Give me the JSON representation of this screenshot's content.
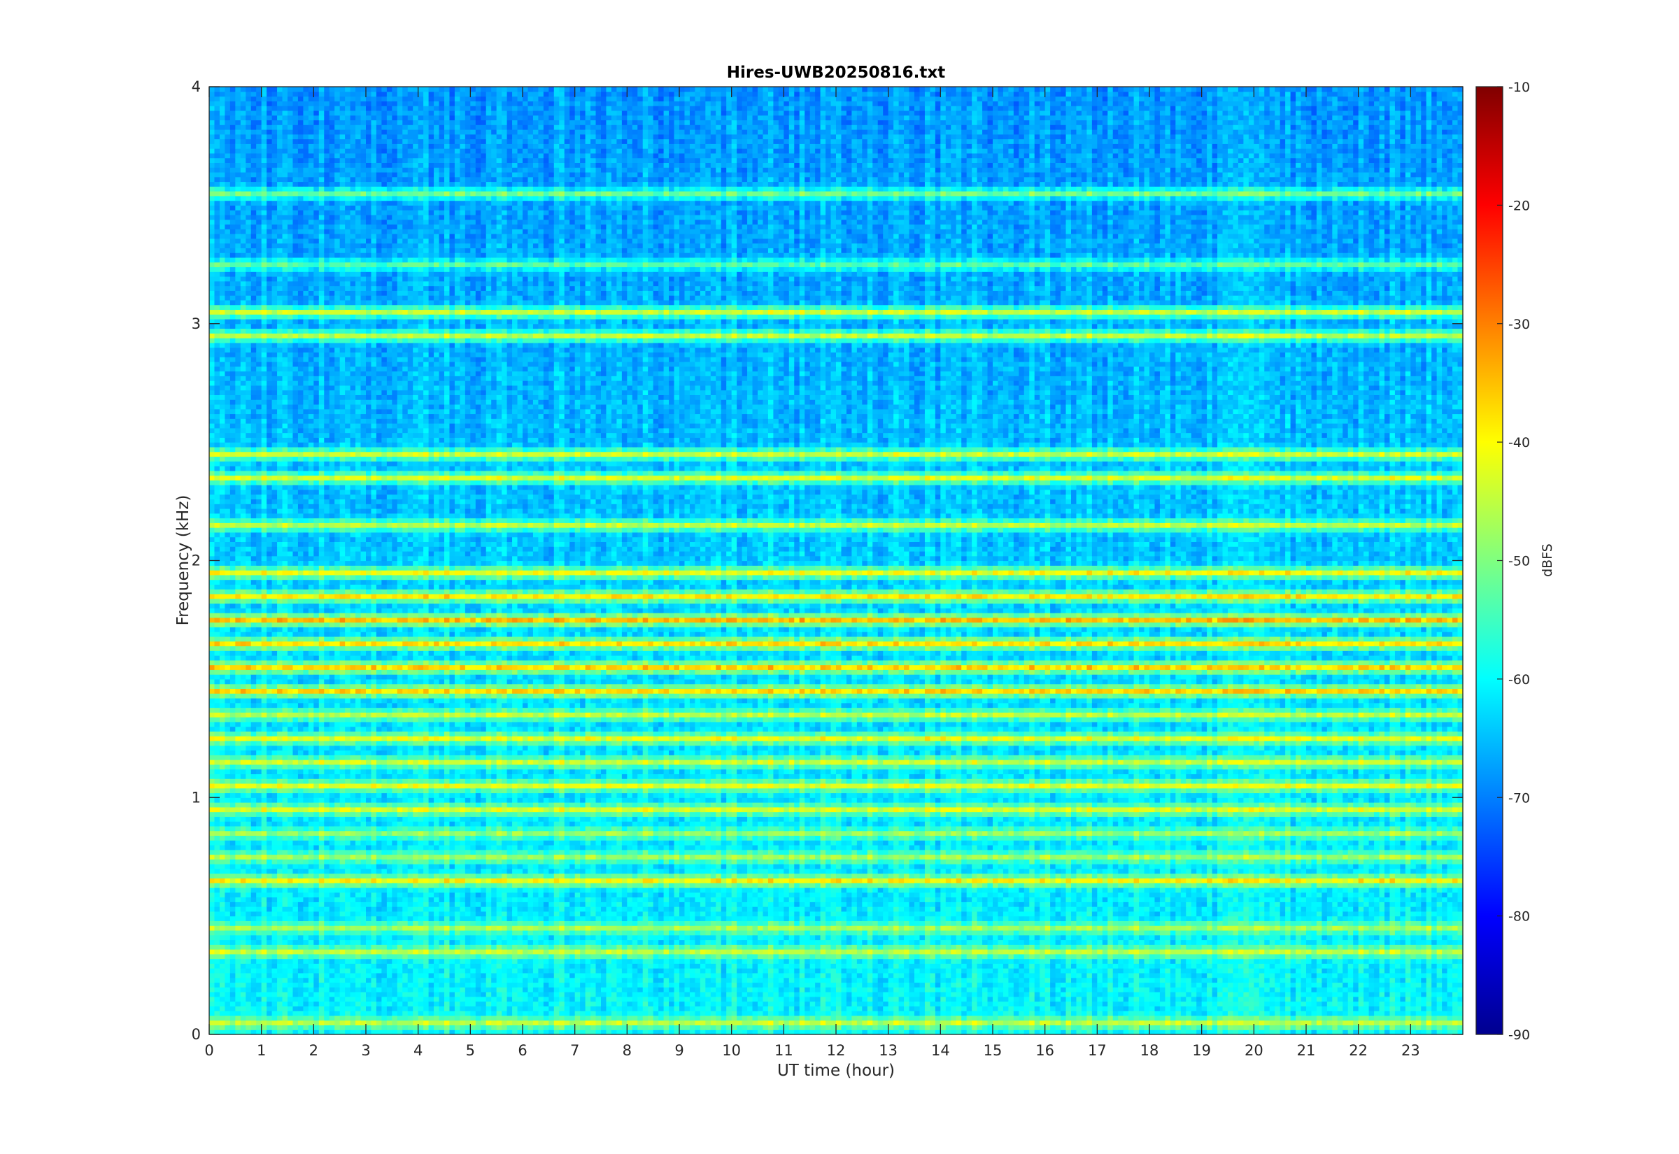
{
  "chart_data": {
    "type": "heatmap",
    "title": "Hires-UWB20250816.txt",
    "xlabel": "UT time (hour)",
    "ylabel": "Frequency (kHz)",
    "colorbar_label": "dBFS",
    "colormap": "jet",
    "xlim": [
      0,
      24
    ],
    "ylim": [
      0,
      4
    ],
    "clim": [
      -90,
      -10
    ],
    "x_ticks": [
      "0",
      "1",
      "2",
      "3",
      "4",
      "5",
      "6",
      "7",
      "8",
      "9",
      "10",
      "11",
      "12",
      "13",
      "14",
      "15",
      "16",
      "17",
      "18",
      "19",
      "20",
      "21",
      "22",
      "23"
    ],
    "y_ticks": [
      "0",
      "1",
      "2",
      "3",
      "4"
    ],
    "colorbar_ticks": [
      "-10",
      "-20",
      "-30",
      "-40",
      "-50",
      "-60",
      "-70",
      "-80",
      "-90"
    ],
    "background_level_dbfs": -60,
    "note_bands": [
      {
        "freq_khz": 0.05,
        "level_dbfs": -45
      },
      {
        "freq_khz": 0.1,
        "level_dbfs": -68
      },
      {
        "freq_khz": 0.35,
        "level_dbfs": -45
      },
      {
        "freq_khz": 0.45,
        "level_dbfs": -47
      },
      {
        "freq_khz": 0.65,
        "level_dbfs": -40
      },
      {
        "freq_khz": 0.75,
        "level_dbfs": -47
      },
      {
        "freq_khz": 0.85,
        "level_dbfs": -48
      },
      {
        "freq_khz": 0.95,
        "level_dbfs": -43
      },
      {
        "freq_khz": 1.05,
        "level_dbfs": -42
      },
      {
        "freq_khz": 1.15,
        "level_dbfs": -44
      },
      {
        "freq_khz": 1.25,
        "level_dbfs": -42
      },
      {
        "freq_khz": 1.35,
        "level_dbfs": -45
      },
      {
        "freq_khz": 1.45,
        "level_dbfs": -37
      },
      {
        "freq_khz": 1.55,
        "level_dbfs": -37
      },
      {
        "freq_khz": 1.65,
        "level_dbfs": -38
      },
      {
        "freq_khz": 1.75,
        "level_dbfs": -35
      },
      {
        "freq_khz": 1.85,
        "level_dbfs": -39
      },
      {
        "freq_khz": 1.95,
        "level_dbfs": -41
      },
      {
        "freq_khz": 2.15,
        "level_dbfs": -45
      },
      {
        "freq_khz": 2.35,
        "level_dbfs": -43
      },
      {
        "freq_khz": 2.45,
        "level_dbfs": -44
      },
      {
        "freq_khz": 2.95,
        "level_dbfs": -45
      },
      {
        "freq_khz": 3.05,
        "level_dbfs": -44
      },
      {
        "freq_khz": 3.25,
        "level_dbfs": -53
      },
      {
        "freq_khz": 3.55,
        "level_dbfs": -51
      }
    ]
  }
}
